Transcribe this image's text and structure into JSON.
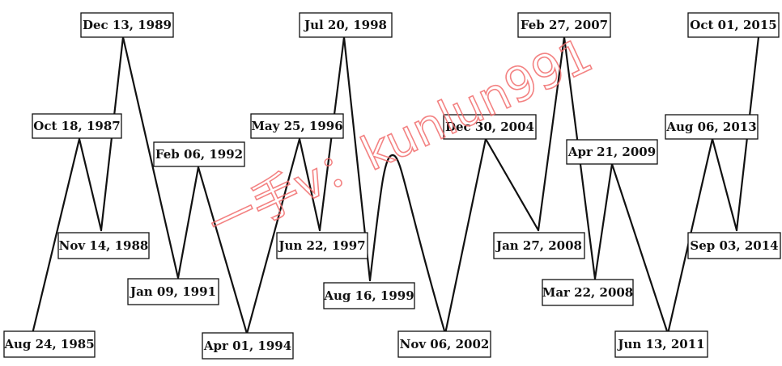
{
  "chart_data": {
    "type": "line",
    "title": "",
    "xlabel": "",
    "ylabel": "",
    "grid": false,
    "legend": "none",
    "line_color": "#111111",
    "series": [
      {
        "points": [
          {
            "date": "Aug 24, 1985",
            "turning": "trough"
          },
          {
            "date": "Oct 18, 1987",
            "turning": "peak"
          },
          {
            "date": "Nov 14, 1988",
            "turning": "trough"
          },
          {
            "date": "Dec 13, 1989",
            "turning": "peak"
          },
          {
            "date": "Jan 09, 1991",
            "turning": "trough"
          },
          {
            "date": "Feb 06, 1992",
            "turning": "peak"
          },
          {
            "date": "Apr 01, 1994",
            "turning": "trough"
          },
          {
            "date": "May 25, 1996",
            "turning": "peak"
          },
          {
            "date": "Jun 22, 1997",
            "turning": "trough"
          },
          {
            "date": "Jul 20, 1998",
            "turning": "peak"
          },
          {
            "date": "Aug 16, 1999",
            "turning": "trough"
          },
          {
            "date": "",
            "turning": "peak"
          },
          {
            "date": "Nov 06, 2002",
            "turning": "trough"
          },
          {
            "date": "Dec 30, 2004",
            "turning": "peak"
          },
          {
            "date": "Jan 27, 2008",
            "turning": "trough"
          },
          {
            "date": "Feb 27, 2007",
            "turning": "peak"
          },
          {
            "date": "Mar 22, 2008",
            "turning": "trough"
          },
          {
            "date": "Apr 21, 2009",
            "turning": "peak"
          },
          {
            "date": "Jun 13, 2011",
            "turning": "trough"
          },
          {
            "date": "Aug 06, 2013",
            "turning": "peak"
          },
          {
            "date": "Sep 03, 2014",
            "turning": "trough"
          },
          {
            "date": "Oct 01, 2015",
            "turning": "peak"
          }
        ]
      }
    ]
  },
  "watermark": {
    "text": "一手v：kunlun991",
    "color": "#f26d6d"
  }
}
